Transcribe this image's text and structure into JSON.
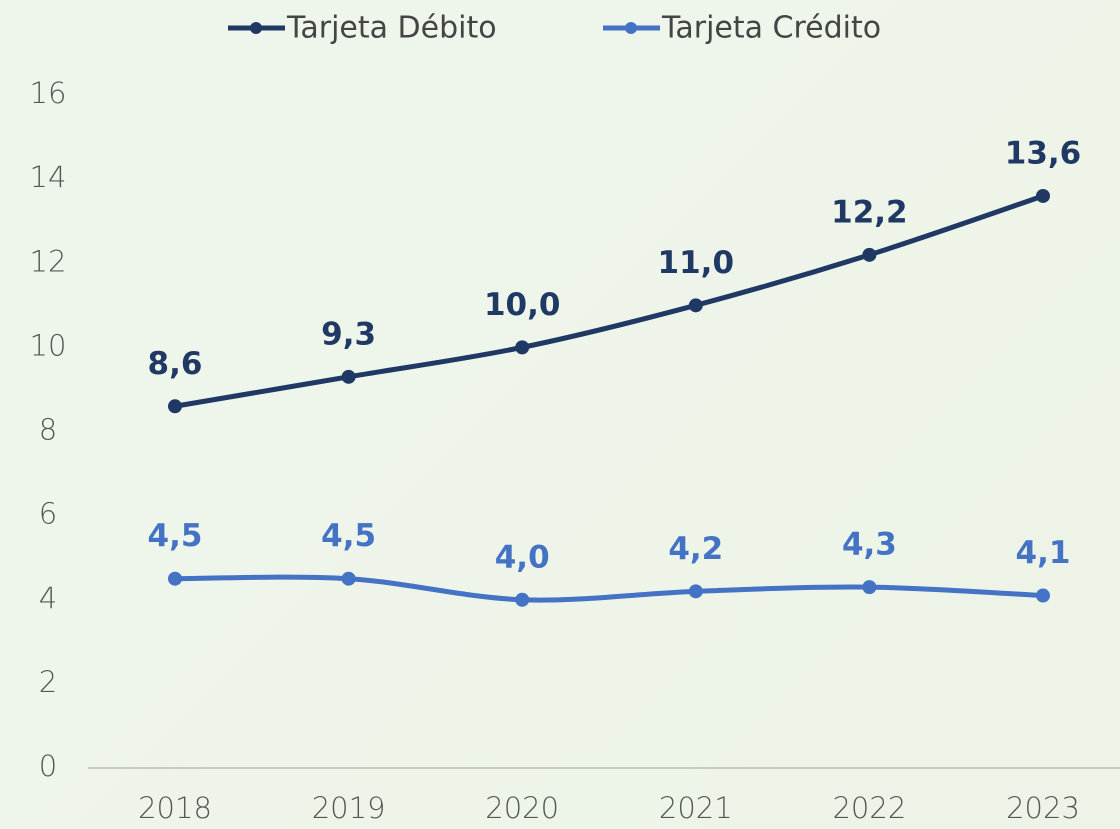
{
  "chart_data": {
    "type": "line",
    "categories": [
      "2018",
      "2019",
      "2020",
      "2021",
      "2022",
      "2023"
    ],
    "series": [
      {
        "name": "Tarjeta Débito",
        "color": "#1f3864",
        "values": [
          8.6,
          9.3,
          10.0,
          11.0,
          12.2,
          13.6
        ],
        "value_labels": [
          "8,6",
          "9,3",
          "10,0",
          "11,0",
          "12,2",
          "13,6"
        ]
      },
      {
        "name": "Tarjeta Crédito",
        "color": "#4472c4",
        "values": [
          4.5,
          4.5,
          4.0,
          4.2,
          4.3,
          4.1
        ],
        "value_labels": [
          "4,5",
          "4,5",
          "4,0",
          "4,2",
          "4,3",
          "4,1"
        ]
      }
    ],
    "ylim": [
      0,
      16
    ],
    "yticks": [
      0,
      2,
      4,
      6,
      8,
      10,
      12,
      14,
      16
    ],
    "grid": false,
    "legend": "top"
  }
}
